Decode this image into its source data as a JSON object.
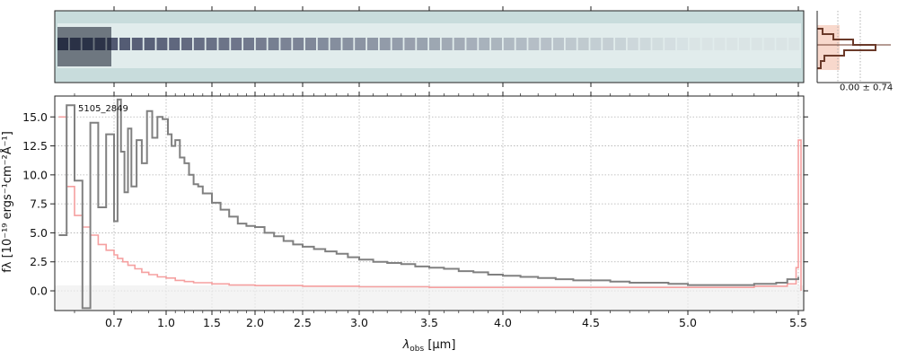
{
  "chart_data": [
    {
      "type": "heatmap",
      "name": "2D spectrum",
      "description_colormap": "bone_r",
      "background_color": "#c8dcdc"
    },
    {
      "type": "line",
      "object_label": "5105_2849",
      "xlabel": "λobs [μm]",
      "xlabel_main": "λ",
      "xlabel_sub": "obs",
      "xlabel_unit": " [μm]",
      "ylabel": "fλ [10⁻¹⁹ ergs⁻¹cm⁻²Å⁻¹]",
      "ylabel_visible": "fλ [10⁻¹⁹ ergs⁻¹cm⁻²Å⁻¹]",
      "ylim": [
        -1.7,
        16.8
      ],
      "xlim": [
        0.55,
        5.52
      ],
      "x_tick_values": [
        0.7,
        1.0,
        1.5,
        2.0,
        2.5,
        3.0,
        3.5,
        4.0,
        4.5,
        5.0,
        5.5
      ],
      "x_tick_labels": [
        "0.7",
        "1.0",
        "1.5",
        "2.0",
        "2.5",
        "3.0",
        "3.5",
        "4.0",
        "4.5",
        "5.0",
        "5.5"
      ],
      "y_ticks": [
        0.0,
        2.5,
        5.0,
        7.5,
        10.0,
        12.5,
        15.0
      ],
      "y_tick_labels": [
        "0.0",
        "2.5",
        "5.0",
        "7.5",
        "10.0",
        "12.5",
        "15.0"
      ],
      "grid": true,
      "series": [
        {
          "name": "flux",
          "color": "#808080",
          "x": [
            0.56,
            0.58,
            0.6,
            0.62,
            0.64,
            0.66,
            0.68,
            0.7,
            0.72,
            0.74,
            0.76,
            0.78,
            0.8,
            0.83,
            0.86,
            0.89,
            0.92,
            0.95,
            0.98,
            1.02,
            1.06,
            1.1,
            1.15,
            1.2,
            1.25,
            1.3,
            1.35,
            1.4,
            1.5,
            1.6,
            1.7,
            1.8,
            1.9,
            2.0,
            2.1,
            2.2,
            2.3,
            2.4,
            2.5,
            2.6,
            2.7,
            2.8,
            2.9,
            3.0,
            3.1,
            3.2,
            3.3,
            3.4,
            3.5,
            3.6,
            3.7,
            3.8,
            3.9,
            4.0,
            4.1,
            4.2,
            4.3,
            4.4,
            4.5,
            4.6,
            4.7,
            4.8,
            4.9,
            5.0,
            5.1,
            5.2,
            5.3,
            5.4,
            5.45,
            5.5
          ],
          "y": [
            4.8,
            16.0,
            9.5,
            -1.5,
            14.5,
            7.2,
            13.5,
            6.0,
            16.5,
            12.0,
            8.5,
            14.0,
            9.0,
            13.0,
            11.0,
            15.5,
            13.2,
            15.0,
            14.8,
            13.5,
            12.5,
            13.0,
            11.5,
            11.0,
            10.0,
            9.2,
            9.0,
            8.4,
            7.6,
            7.0,
            6.4,
            5.8,
            5.6,
            5.5,
            5.0,
            4.7,
            4.3,
            4.0,
            3.8,
            3.6,
            3.4,
            3.2,
            2.9,
            2.7,
            2.5,
            2.4,
            2.3,
            2.1,
            2.0,
            1.9,
            1.7,
            1.6,
            1.4,
            1.3,
            1.2,
            1.1,
            1.0,
            0.9,
            0.9,
            0.8,
            0.7,
            0.7,
            0.6,
            0.5,
            0.5,
            0.5,
            0.6,
            0.7,
            1.0,
            1.2
          ]
        },
        {
          "name": "uncertainty",
          "color": "#f5a0a0",
          "x": [
            0.56,
            0.58,
            0.6,
            0.62,
            0.64,
            0.66,
            0.68,
            0.7,
            0.72,
            0.75,
            0.78,
            0.82,
            0.86,
            0.9,
            0.95,
            1.0,
            1.1,
            1.2,
            1.3,
            1.5,
            1.7,
            2.0,
            2.5,
            3.0,
            3.5,
            4.0,
            4.5,
            5.0,
            5.3,
            5.45,
            5.49,
            5.5,
            5.51
          ],
          "y": [
            15.0,
            9.0,
            6.5,
            5.5,
            4.8,
            4.0,
            3.5,
            3.1,
            2.8,
            2.5,
            2.2,
            1.9,
            1.6,
            1.4,
            1.2,
            1.1,
            0.9,
            0.8,
            0.7,
            0.6,
            0.5,
            0.45,
            0.4,
            0.35,
            0.3,
            0.3,
            0.3,
            0.3,
            0.4,
            0.6,
            2.0,
            13.0,
            0.0
          ]
        }
      ]
    },
    {
      "type": "bar",
      "name": "profile histogram",
      "annotation": "0.00 ± 0.74",
      "line_color": "#6b3a2a",
      "fill_color": "#f8d8cc"
    }
  ]
}
